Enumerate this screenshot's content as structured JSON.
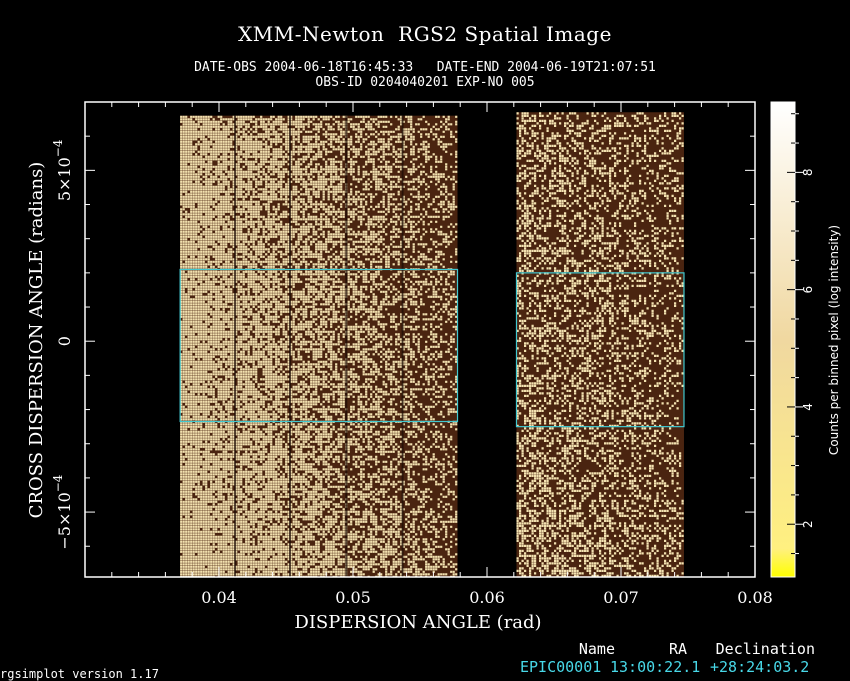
{
  "chart_data": {
    "type": "heatmap",
    "title": "XMM-Newton  RGS2 Spatial Image",
    "subtitle_line1": "DATE-OBS 2004-06-18T16:45:33   DATE-END 2004-06-19T21:07:51",
    "subtitle_line2": "OBS-ID 0204040201 EXP-NO 005",
    "xlabel": "DISPERSION ANGLE (rad)",
    "ylabel": "CROSS DISPERSION ANGLE (radians)",
    "xlim": [
      0.03,
      0.08
    ],
    "ylim": [
      -0.00069,
      0.0007
    ],
    "x_ticks": [
      {
        "value": 0.04,
        "label": "0.04"
      },
      {
        "value": 0.05,
        "label": "0.05"
      },
      {
        "value": 0.06,
        "label": "0.06"
      },
      {
        "value": 0.07,
        "label": "0.07"
      },
      {
        "value": 0.08,
        "label": "0.08"
      }
    ],
    "y_ticks": [
      {
        "value": 0.0005,
        "label_mantissa": "5×10",
        "label_exp": "−4"
      },
      {
        "value": 0,
        "label_mantissa": "0",
        "label_exp": ""
      },
      {
        "value": -0.0005,
        "label_mantissa": "−5×10",
        "label_exp": "−4"
      }
    ],
    "data_regions": [
      {
        "x_start": 0.0371,
        "x_end": 0.0578,
        "y_min": -0.00069,
        "y_max": 0.00066,
        "brightness_left": 0.95,
        "brightness_right": 0.3
      },
      {
        "x_start": 0.0622,
        "x_end": 0.0747,
        "y_min": -0.00069,
        "y_max": 0.00067,
        "brightness_left": 0.45,
        "brightness_right": 0.25
      }
    ],
    "chip_gaps": [
      0.0412,
      0.0453,
      0.0495,
      0.0537
    ],
    "extraction_regions": [
      {
        "x_start": 0.0371,
        "x_end": 0.0578,
        "y_min": -0.000235,
        "y_max": 0.00021
      },
      {
        "x_start": 0.0622,
        "x_end": 0.0747,
        "y_min": -0.00025,
        "y_max": 0.0002
      }
    ],
    "colorbar": {
      "label": "Counts per binned pixel (log intensity)",
      "range": [
        1.1,
        9.2
      ],
      "ticks": [
        {
          "value": 2,
          "label": "2"
        },
        {
          "value": 4,
          "label": "4"
        },
        {
          "value": 6,
          "label": "6"
        },
        {
          "value": 8,
          "label": "8"
        }
      ],
      "colors": [
        "#ffff00",
        "#fff080",
        "#f0d8a0",
        "#ffffff"
      ]
    },
    "region_color": "#40c8d0"
  },
  "source_table": {
    "headers": [
      "Name",
      "RA",
      "Declination"
    ],
    "rows": [
      [
        "EPIC00001",
        "13:00:22.1",
        "+28:24:03.2"
      ]
    ]
  },
  "footer": "rgsimplot version 1.17"
}
